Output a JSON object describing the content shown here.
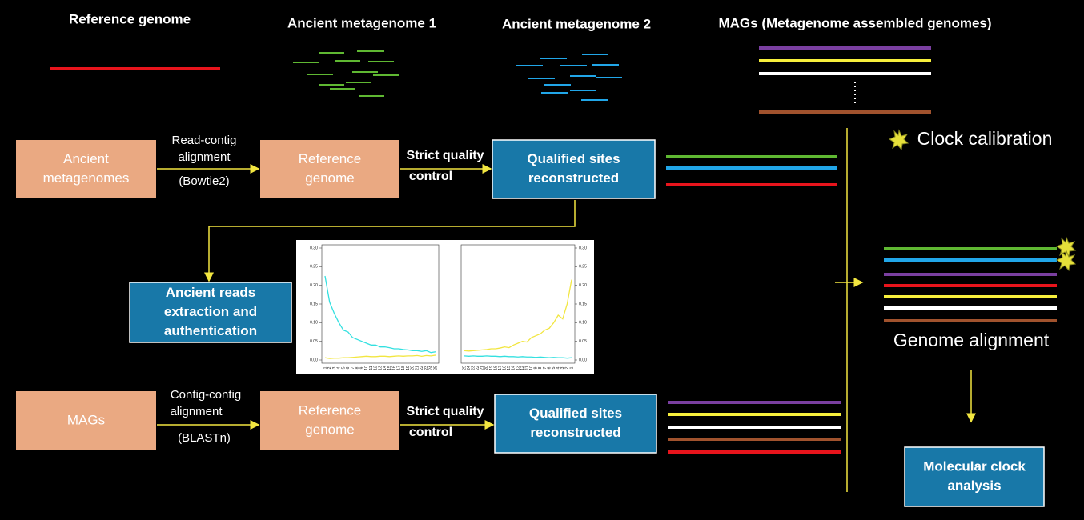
{
  "headers": [
    "Reference genome",
    "Ancient metagenome 1",
    "Ancient metagenome 2",
    "MAGs (Metagenome assembled genomes)"
  ],
  "boxes": [
    {
      "lines": [
        "Ancient",
        "metagenomes"
      ]
    },
    {
      "lines": [
        "Reference",
        "genome"
      ]
    },
    {
      "lines": [
        "Qualified sites",
        "reconstructed"
      ]
    },
    {
      "lines": [
        "Ancient reads",
        "extraction and",
        "authentication"
      ]
    },
    {
      "lines": [
        "MAGs"
      ]
    },
    {
      "lines": [
        "Reference",
        "genome"
      ]
    },
    {
      "lines": [
        "Qualified sites",
        "reconstructed"
      ]
    },
    {
      "lines": [
        "Molecular clock",
        "analysis"
      ]
    }
  ],
  "edge_labels": {
    "read_contig": [
      "Read-contig",
      "alignment",
      "(Bowtie2)"
    ],
    "qc_1": [
      "Strict quality",
      "control"
    ],
    "contig_contig": [
      "Contig-contig",
      "alignment",
      "(BLASTn)"
    ],
    "qc_2": [
      "Strict quality",
      "control"
    ]
  },
  "clock_calibration": "Clock calibration",
  "genome_alignment": "Genome alignment",
  "damage_plot": {
    "ylim": [
      0,
      0.3
    ],
    "yticks": [
      {
        "value": 0,
        "label": "0.00"
      },
      {
        "value": 0.05,
        "label": "0.05"
      },
      {
        "value": 0.1,
        "label": "0.10"
      },
      {
        "value": 0.15,
        "label": "0.15"
      },
      {
        "value": 0.2,
        "label": "0.20"
      },
      {
        "value": 0.25,
        "label": "0.25"
      },
      {
        "value": 0.3,
        "label": "0.30"
      }
    ],
    "left": {
      "xticks": [
        1,
        2,
        3,
        4,
        5,
        6,
        7,
        8,
        9,
        10,
        11,
        12,
        13,
        14,
        15,
        16,
        17,
        18,
        19,
        20,
        21,
        22,
        23,
        24,
        25
      ],
      "series": [
        {
          "color": "#33e0e0",
          "values": [
            0.225,
            0.155,
            0.125,
            0.1,
            0.08,
            0.075,
            0.06,
            0.055,
            0.05,
            0.045,
            0.04,
            0.04,
            0.035,
            0.035,
            0.033,
            0.03,
            0.03,
            0.028,
            0.027,
            0.025,
            0.025,
            0.023,
            0.025,
            0.02,
            0.022
          ]
        },
        {
          "color": "#f2e640",
          "values": [
            0.006,
            0.004,
            0.005,
            0.005,
            0.006,
            0.006,
            0.007,
            0.008,
            0.009,
            0.01,
            0.009,
            0.009,
            0.01,
            0.01,
            0.009,
            0.01,
            0.011,
            0.01,
            0.011,
            0.011,
            0.012,
            0.01,
            0.012,
            0.011,
            0.013
          ]
        }
      ]
    },
    "right": {
      "xticks": [
        25,
        24,
        23,
        22,
        21,
        20,
        19,
        18,
        17,
        16,
        15,
        14,
        13,
        12,
        11,
        10,
        9,
        8,
        7,
        6,
        5,
        4,
        3,
        2,
        1
      ],
      "series": [
        {
          "color": "#f2e640",
          "values": [
            0.025,
            0.024,
            0.025,
            0.026,
            0.027,
            0.028,
            0.03,
            0.03,
            0.032,
            0.035,
            0.033,
            0.04,
            0.045,
            0.05,
            0.048,
            0.06,
            0.065,
            0.07,
            0.08,
            0.085,
            0.1,
            0.12,
            0.11,
            0.15,
            0.215
          ]
        },
        {
          "color": "#33e0e0",
          "values": [
            0.011,
            0.01,
            0.011,
            0.01,
            0.01,
            0.011,
            0.01,
            0.01,
            0.009,
            0.01,
            0.009,
            0.009,
            0.008,
            0.009,
            0.008,
            0.008,
            0.007,
            0.008,
            0.007,
            0.006,
            0.007,
            0.006,
            0.006,
            0.005,
            0.006
          ]
        }
      ]
    }
  }
}
